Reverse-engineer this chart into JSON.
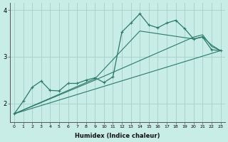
{
  "xlabel": "Humidex (Indice chaleur)",
  "ylabel": "",
  "bg_color": "#c8ece6",
  "line_color": "#2d7a6a",
  "grid_color": "#a8d4cc",
  "xlim": [
    -0.5,
    23.5
  ],
  "ylim": [
    1.6,
    4.15
  ],
  "yticks": [
    2,
    3,
    4
  ],
  "xticks": [
    0,
    1,
    2,
    3,
    4,
    5,
    6,
    7,
    8,
    9,
    10,
    11,
    12,
    13,
    14,
    15,
    16,
    17,
    18,
    19,
    20,
    21,
    22,
    23
  ],
  "series": [
    {
      "x": [
        0,
        1,
        2,
        3,
        4,
        5,
        6,
        7,
        8,
        9,
        10,
        11,
        12,
        13,
        14,
        15,
        16,
        17,
        18,
        19,
        20,
        21,
        22,
        23
      ],
      "y": [
        1.78,
        2.05,
        2.35,
        2.48,
        2.28,
        2.27,
        2.43,
        2.43,
        2.5,
        2.55,
        2.45,
        2.57,
        3.53,
        3.72,
        3.92,
        3.68,
        3.62,
        3.72,
        3.78,
        3.6,
        3.38,
        3.42,
        3.15,
        3.13
      ],
      "has_markers": true
    },
    {
      "x": [
        0,
        9,
        14,
        20,
        21,
        22,
        23
      ],
      "y": [
        1.78,
        2.53,
        3.55,
        3.38,
        3.43,
        3.25,
        3.13
      ],
      "has_markers": false
    },
    {
      "x": [
        0,
        9,
        20,
        21,
        22,
        23
      ],
      "y": [
        1.78,
        2.5,
        3.42,
        3.47,
        3.22,
        3.13
      ],
      "has_markers": false
    },
    {
      "x": [
        0,
        23
      ],
      "y": [
        1.78,
        3.13
      ],
      "has_markers": false
    }
  ]
}
